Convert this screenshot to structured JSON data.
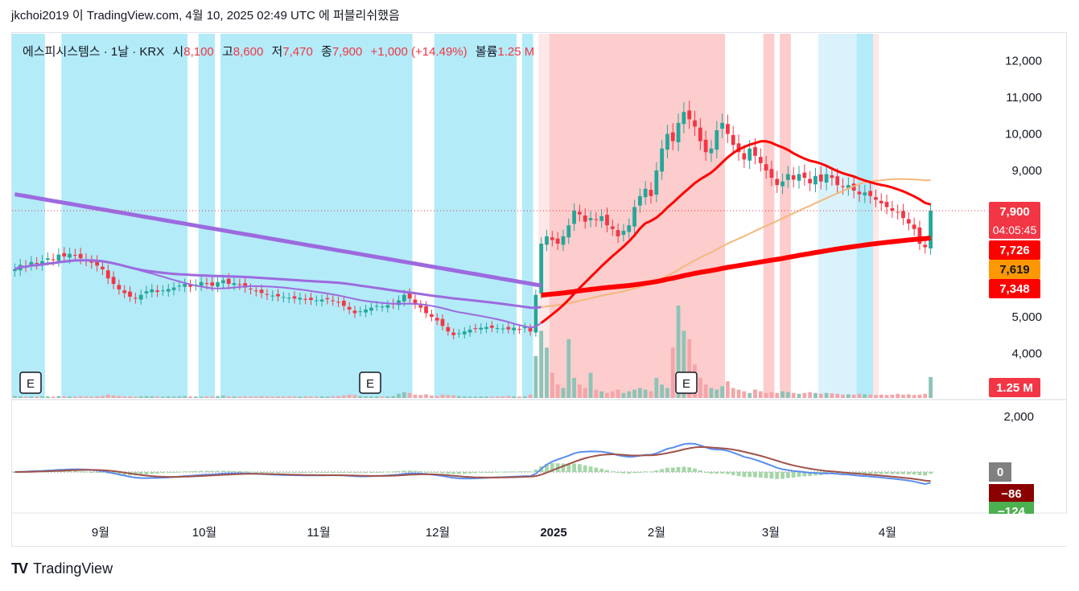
{
  "header": {
    "publish_line": "jkchoi2019 이 TradingView.com, 4월 10, 2025 02:49 UTC 에 퍼블리쉬했음"
  },
  "legend": {
    "symbol": "에스피시스템스 · 1날 · KRX",
    "open_label": "시",
    "open": "8,100",
    "high_label": "고",
    "high": "8,600",
    "low_label": "저",
    "low": "7,470",
    "close_label": "종",
    "close": "7,900",
    "change": "+1,000 (+14.49%)",
    "volume_label": "볼륨",
    "volume": "1.25 M"
  },
  "footer": {
    "brand": "TradingView",
    "logo": "TV"
  },
  "colors": {
    "up": "#26a69a",
    "down": "#f23645",
    "ma_purple": "#9c6ade",
    "ma_red": "#ff0000",
    "ma_orange": "#f5b87a",
    "macd": "#5b8def",
    "signal": "#a0524a",
    "cyan_zone": "#b3ebf8",
    "red_zone": "#fdcccc"
  },
  "chart_data": {
    "type": "candlestick",
    "x_labels": [
      "9월",
      "10월",
      "11월",
      "12월",
      "2025",
      "2월",
      "3월",
      "4월"
    ],
    "price_ticks": [
      "12,000",
      "11,000",
      "10,000",
      "9,000",
      "5,000",
      "4,000"
    ],
    "price_tick_values": [
      12000,
      11000,
      10000,
      9000,
      5000,
      4000
    ],
    "macd_ticks": [
      "2,000"
    ],
    "price_markers": [
      {
        "label": "7,900",
        "sub": "04:05:45",
        "value": 7900,
        "color": "#f23645"
      },
      {
        "label": "7,726",
        "value": 7726,
        "color": "#ff0000"
      },
      {
        "label": "7,619",
        "value": 7619,
        "color": "#ff9800"
      },
      {
        "label": "7,348",
        "value": 7348,
        "color": "#ff0000"
      },
      {
        "label": "1.25 M",
        "value": 1.25,
        "color": "#f23645"
      }
    ],
    "macd_markers": [
      {
        "label": "0",
        "value": 0,
        "color": "#808080"
      },
      {
        "label": "−86",
        "value": -86,
        "color": "#8b0000"
      },
      {
        "label": "−124",
        "value": -124,
        "color": "#4caf50"
      }
    ],
    "earnings_marker": "E",
    "close_series": [
      6300,
      6420,
      6380,
      6500,
      6450,
      6520,
      6600,
      6560,
      6700,
      6650,
      6720,
      6680,
      6600,
      6550,
      6480,
      6400,
      6300,
      6050,
      5900,
      5750,
      5650,
      5550,
      5500,
      5600,
      5700,
      5750,
      5680,
      5720,
      5760,
      5800,
      5850,
      5900,
      5820,
      5880,
      5950,
      5900,
      5850,
      5950,
      6000,
      5900,
      5920,
      5880,
      5800,
      5750,
      5700,
      5650,
      5600,
      5580,
      5560,
      5540,
      5520,
      5500,
      5520,
      5480,
      5460,
      5450,
      5470,
      5480,
      5440,
      5400,
      5300,
      5200,
      5100,
      5150,
      5200,
      5250,
      5300,
      5280,
      5320,
      5350,
      5450,
      5600,
      5500,
      5350,
      5250,
      5100,
      5000,
      4900,
      4750,
      4600,
      4500,
      4550,
      4600,
      4650,
      4680,
      4700,
      4720,
      4700,
      4690,
      4680,
      4660,
      4700,
      4650,
      4720,
      4600,
      5600,
      7000,
      7200,
      7100,
      7000,
      7200,
      7500,
      7900,
      7800,
      7600,
      7700,
      7650,
      7750,
      7500,
      7400,
      7200,
      7350,
      7500,
      8000,
      8300,
      8500,
      8300,
      9000,
      9600,
      10000,
      9800,
      10300,
      10600,
      10400,
      10200,
      9800,
      9500,
      9600,
      10100,
      10300,
      10000,
      9700,
      9500,
      9300,
      9600,
      9400,
      9200,
      9000,
      8800,
      8600,
      8700,
      8900,
      8750,
      8900,
      8800,
      8650,
      8850,
      8700,
      8900,
      8800,
      8600,
      8550,
      8600,
      8450,
      8350,
      8400,
      8300,
      8200,
      8100,
      8000,
      7900,
      7850,
      7700,
      7550,
      7400,
      7000,
      6900,
      7900
    ],
    "volume_series": [
      0.12,
      0.1,
      0.08,
      0.1,
      0.09,
      0.11,
      0.1,
      0.08,
      0.12,
      0.1,
      0.09,
      0.08,
      0.1,
      0.09,
      0.08,
      0.1,
      0.12,
      0.2,
      0.15,
      0.12,
      0.1,
      0.09,
      0.08,
      0.1,
      0.12,
      0.1,
      0.09,
      0.08,
      0.1,
      0.09,
      0.1,
      0.12,
      0.1,
      0.09,
      0.08,
      0.1,
      0.09,
      0.12,
      0.15,
      0.1,
      0.09,
      0.08,
      0.1,
      0.09,
      0.08,
      0.1,
      0.09,
      0.08,
      0.09,
      0.08,
      0.1,
      0.09,
      0.08,
      0.1,
      0.09,
      0.08,
      0.1,
      0.09,
      0.1,
      0.12,
      0.15,
      0.2,
      0.18,
      0.12,
      0.1,
      0.09,
      0.1,
      0.09,
      0.1,
      0.12,
      0.25,
      0.35,
      0.3,
      0.2,
      0.18,
      0.22,
      0.15,
      0.12,
      0.2,
      0.18,
      0.15,
      0.12,
      0.1,
      0.09,
      0.08,
      0.1,
      0.09,
      0.08,
      0.09,
      0.1,
      0.12,
      0.1,
      0.09,
      0.1,
      0.2,
      2.5,
      4.0,
      3.0,
      1.5,
      0.8,
      0.6,
      3.5,
      1.2,
      0.8,
      0.6,
      1.5,
      0.5,
      0.4,
      0.3,
      0.4,
      0.5,
      0.3,
      0.4,
      0.5,
      0.6,
      0.5,
      0.4,
      1.2,
      0.8,
      0.6,
      3.0,
      5.5,
      4.0,
      3.5,
      2.0,
      1.2,
      0.8,
      0.6,
      0.5,
      0.7,
      1.0,
      0.6,
      0.5,
      0.4,
      0.3,
      0.5,
      0.4,
      0.3,
      0.35,
      0.3,
      0.4,
      0.35,
      0.3,
      0.25,
      0.3,
      0.35,
      0.3,
      0.25,
      0.3,
      0.28,
      0.25,
      0.2,
      0.22,
      0.2,
      0.25,
      0.22,
      0.2,
      0.18,
      0.2,
      0.18,
      0.2,
      0.25,
      0.2,
      0.22,
      0.18,
      0.2,
      0.25,
      1.25
    ],
    "bg_zones": [
      {
        "from": 0,
        "to": 6,
        "color": "cyan"
      },
      {
        "from": 9,
        "to": 32,
        "color": "cyan"
      },
      {
        "from": 34,
        "to": 37,
        "color": "cyan"
      },
      {
        "from": 38,
        "to": 73,
        "color": "cyan"
      },
      {
        "from": 77,
        "to": 92,
        "color": "cyan"
      },
      {
        "from": 93,
        "to": 95,
        "color": "cyan"
      },
      {
        "from": 96,
        "to": 98,
        "color": "lightred"
      },
      {
        "from": 98,
        "to": 130,
        "color": "red"
      },
      {
        "from": 137,
        "to": 139,
        "color": "red"
      },
      {
        "from": 140,
        "to": 142,
        "color": "red"
      },
      {
        "from": 147,
        "to": 154,
        "color": "lightcyan"
      },
      {
        "from": 154,
        "to": 157,
        "color": "cyan"
      },
      {
        "from": 157,
        "to": 158,
        "color": "lightred"
      }
    ]
  }
}
